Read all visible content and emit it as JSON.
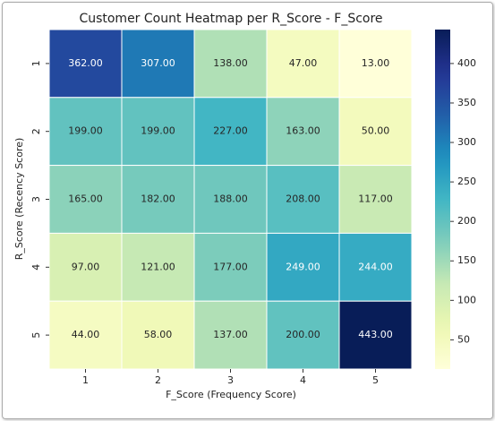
{
  "chart_data": {
    "type": "heatmap",
    "title": "Customer Count Heatmap per R_Score - F_Score",
    "xlabel": "F_Score (Frequency Score)",
    "ylabel": "R_Score (Recency Score)",
    "x_categories": [
      "1",
      "2",
      "3",
      "4",
      "5"
    ],
    "y_categories": [
      "1",
      "2",
      "3",
      "4",
      "5"
    ],
    "values": [
      [
        362,
        307,
        138,
        47,
        13
      ],
      [
        199,
        199,
        227,
        163,
        50
      ],
      [
        165,
        182,
        188,
        208,
        117
      ],
      [
        97,
        121,
        177,
        249,
        244
      ],
      [
        44,
        58,
        137,
        200,
        443
      ]
    ],
    "value_labels": [
      [
        "362.00",
        "307.00",
        "138.00",
        "47.00",
        "13.00"
      ],
      [
        "199.00",
        "199.00",
        "227.00",
        "163.00",
        "50.00"
      ],
      [
        "165.00",
        "182.00",
        "188.00",
        "208.00",
        "117.00"
      ],
      [
        "97.00",
        "121.00",
        "177.00",
        "249.00",
        "244.00"
      ],
      [
        "44.00",
        "58.00",
        "137.00",
        "200.00",
        "443.00"
      ]
    ],
    "colormap": "YlGnBu",
    "clim": [
      13,
      443
    ],
    "cticks": [
      50,
      100,
      150,
      200,
      250,
      300,
      350,
      400
    ]
  }
}
